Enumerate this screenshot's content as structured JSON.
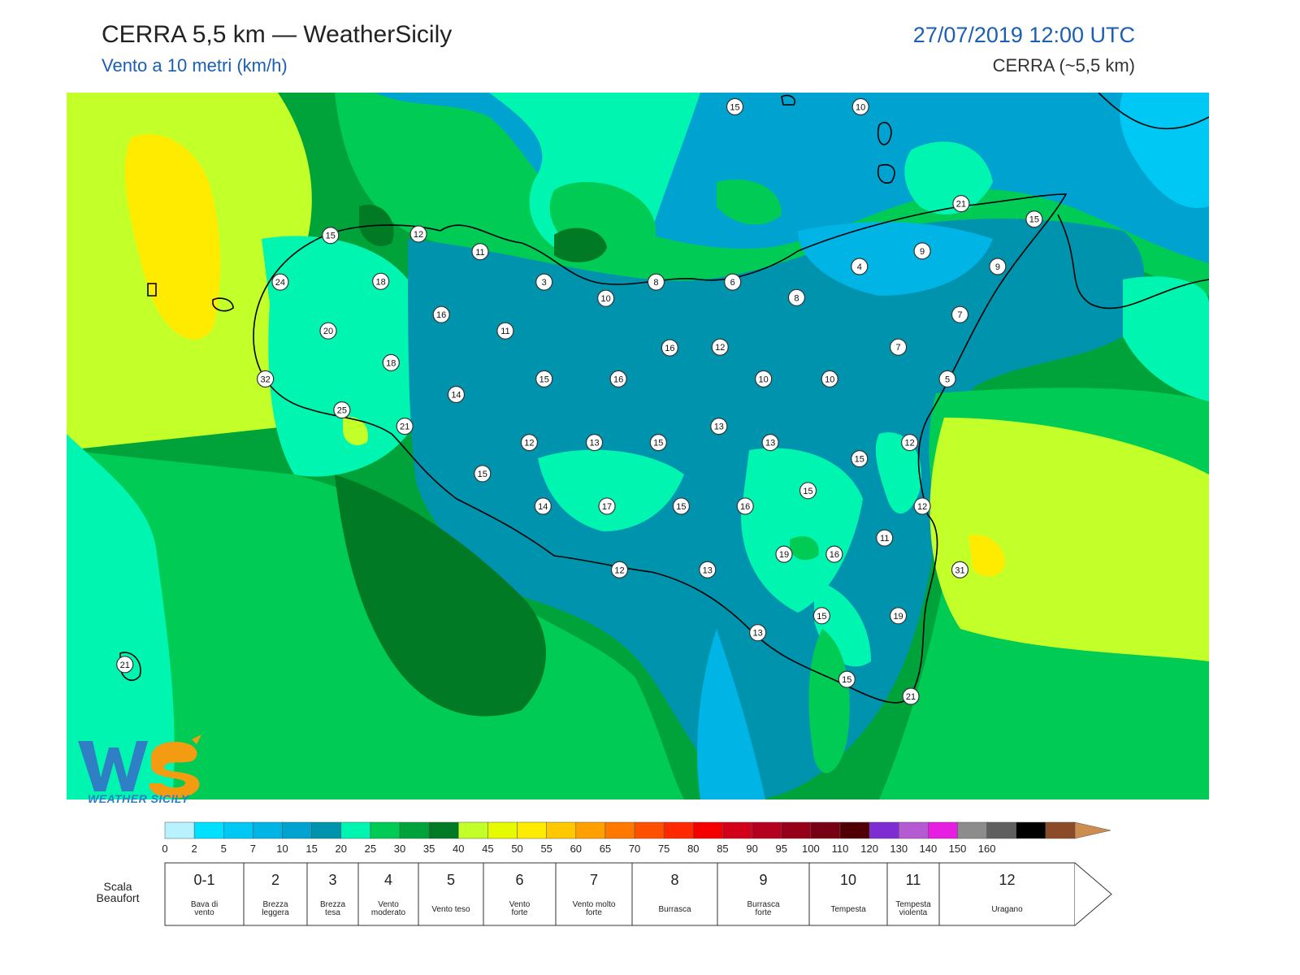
{
  "header": {
    "title": "CERRA 5,5 km — WeatherSicily",
    "subtitle": "Vento a 10 metri (km/h)",
    "datetime": "27/07/2019 12:00 UTC",
    "model": "CERRA (~5,5 km)"
  },
  "logo": {
    "letters": "WS",
    "text": "WEATHER SICILY"
  },
  "stations": [
    {
      "v": "15",
      "lon": 0.585,
      "lat": 0.02
    },
    {
      "v": "10",
      "lon": 0.695,
      "lat": 0.02
    },
    {
      "v": "21",
      "lon": 0.783,
      "lat": 0.157
    },
    {
      "v": "15",
      "lon": 0.847,
      "lat": 0.179
    },
    {
      "v": "15",
      "lon": 0.231,
      "lat": 0.202
    },
    {
      "v": "12",
      "lon": 0.308,
      "lat": 0.2
    },
    {
      "v": "11",
      "lon": 0.362,
      "lat": 0.225
    },
    {
      "v": "9",
      "lon": 0.749,
      "lat": 0.224
    },
    {
      "v": "4",
      "lon": 0.694,
      "lat": 0.246
    },
    {
      "v": "9",
      "lon": 0.815,
      "lat": 0.246
    },
    {
      "v": "24",
      "lon": 0.187,
      "lat": 0.268
    },
    {
      "v": "18",
      "lon": 0.275,
      "lat": 0.267
    },
    {
      "v": "3",
      "lon": 0.418,
      "lat": 0.268
    },
    {
      "v": "8",
      "lon": 0.516,
      "lat": 0.268
    },
    {
      "v": "6",
      "lon": 0.583,
      "lat": 0.268
    },
    {
      "v": "10",
      "lon": 0.472,
      "lat": 0.291
    },
    {
      "v": "8",
      "lon": 0.639,
      "lat": 0.29
    },
    {
      "v": "16",
      "lon": 0.328,
      "lat": 0.314
    },
    {
      "v": "7",
      "lon": 0.782,
      "lat": 0.314
    },
    {
      "v": "20",
      "lon": 0.229,
      "lat": 0.337
    },
    {
      "v": "11",
      "lon": 0.384,
      "lat": 0.337
    },
    {
      "v": "16",
      "lon": 0.528,
      "lat": 0.361
    },
    {
      "v": "12",
      "lon": 0.572,
      "lat": 0.36
    },
    {
      "v": "7",
      "lon": 0.728,
      "lat": 0.36
    },
    {
      "v": "18",
      "lon": 0.284,
      "lat": 0.382
    },
    {
      "v": "15",
      "lon": 0.418,
      "lat": 0.405
    },
    {
      "v": "16",
      "lon": 0.483,
      "lat": 0.405
    },
    {
      "v": "10",
      "lon": 0.61,
      "lat": 0.405
    },
    {
      "v": "10",
      "lon": 0.668,
      "lat": 0.405
    },
    {
      "v": "5",
      "lon": 0.771,
      "lat": 0.405
    },
    {
      "v": "32",
      "lon": 0.174,
      "lat": 0.405
    },
    {
      "v": "14",
      "lon": 0.341,
      "lat": 0.427
    },
    {
      "v": "25",
      "lon": 0.241,
      "lat": 0.449
    },
    {
      "v": "21",
      "lon": 0.296,
      "lat": 0.472
    },
    {
      "v": "13",
      "lon": 0.571,
      "lat": 0.472
    },
    {
      "v": "12",
      "lon": 0.405,
      "lat": 0.495
    },
    {
      "v": "13",
      "lon": 0.462,
      "lat": 0.495
    },
    {
      "v": "15",
      "lon": 0.518,
      "lat": 0.495
    },
    {
      "v": "13",
      "lon": 0.616,
      "lat": 0.495
    },
    {
      "v": "12",
      "lon": 0.738,
      "lat": 0.495
    },
    {
      "v": "15",
      "lon": 0.694,
      "lat": 0.518
    },
    {
      "v": "15",
      "lon": 0.364,
      "lat": 0.539
    },
    {
      "v": "15",
      "lon": 0.649,
      "lat": 0.563
    },
    {
      "v": "14",
      "lon": 0.417,
      "lat": 0.585
    },
    {
      "v": "17",
      "lon": 0.473,
      "lat": 0.585
    },
    {
      "v": "15",
      "lon": 0.538,
      "lat": 0.585
    },
    {
      "v": "16",
      "lon": 0.594,
      "lat": 0.585
    },
    {
      "v": "12",
      "lon": 0.749,
      "lat": 0.585
    },
    {
      "v": "11",
      "lon": 0.716,
      "lat": 0.63
    },
    {
      "v": "19",
      "lon": 0.628,
      "lat": 0.653
    },
    {
      "v": "16",
      "lon": 0.672,
      "lat": 0.653
    },
    {
      "v": "12",
      "lon": 0.484,
      "lat": 0.675
    },
    {
      "v": "13",
      "lon": 0.561,
      "lat": 0.675
    },
    {
      "v": "31",
      "lon": 0.782,
      "lat": 0.675
    },
    {
      "v": "15",
      "lon": 0.661,
      "lat": 0.74
    },
    {
      "v": "19",
      "lon": 0.728,
      "lat": 0.74
    },
    {
      "v": "13",
      "lon": 0.605,
      "lat": 0.764
    },
    {
      "v": "21",
      "lon": 0.051,
      "lat": 0.809
    },
    {
      "v": "15",
      "lon": 0.683,
      "lat": 0.83
    },
    {
      "v": "21",
      "lon": 0.739,
      "lat": 0.854
    }
  ],
  "colorbar": {
    "colors": [
      "#b9f2ff",
      "#00e1ff",
      "#00c8f5",
      "#00b4e6",
      "#00a3cf",
      "#0093ad",
      "#00f5b0",
      "#00cc55",
      "#00a33a",
      "#007a24",
      "#c3ff28",
      "#e6fa00",
      "#ffeb00",
      "#ffc800",
      "#ffa000",
      "#ff7800",
      "#ff5000",
      "#ff2800",
      "#f50000",
      "#d20019",
      "#b4001e",
      "#960019",
      "#780014",
      "#500005",
      "#7d2dd2",
      "#b45ad2",
      "#e61ee1",
      "#8c8c8c",
      "#5f5f5f",
      "#000000",
      "#8c4b28",
      "#cd8c50"
    ],
    "ticks": [
      "0",
      "2",
      "5",
      "7",
      "10",
      "15",
      "20",
      "25",
      "30",
      "35",
      "40",
      "45",
      "50",
      "55",
      "60",
      "65",
      "70",
      "75",
      "80",
      "85",
      "90",
      "95",
      "100",
      "110",
      "120",
      "130",
      "140",
      "150",
      "160"
    ]
  },
  "beaufort": {
    "label_line1": "Scala",
    "label_line2": "Beaufort",
    "cells": [
      {
        "num": "0-1",
        "desc": [
          "Bava di",
          "vento"
        ]
      },
      {
        "num": "2",
        "desc": [
          "Brezza",
          "leggera"
        ]
      },
      {
        "num": "3",
        "desc": [
          "Brezza",
          "tesa"
        ]
      },
      {
        "num": "4",
        "desc": [
          "Vento",
          "moderato"
        ]
      },
      {
        "num": "5",
        "desc": [
          "Vento teso"
        ]
      },
      {
        "num": "6",
        "desc": [
          "Vento",
          "forte"
        ]
      },
      {
        "num": "7",
        "desc": [
          "Vento molto",
          "forte"
        ]
      },
      {
        "num": "8",
        "desc": [
          "Burrasca"
        ]
      },
      {
        "num": "9",
        "desc": [
          "Burrasca",
          "forte"
        ]
      },
      {
        "num": "10",
        "desc": [
          "Tempesta"
        ]
      },
      {
        "num": "11",
        "desc": [
          "Tempesta",
          "violenta"
        ]
      },
      {
        "num": "12",
        "desc": [
          "Uragano"
        ]
      }
    ]
  }
}
